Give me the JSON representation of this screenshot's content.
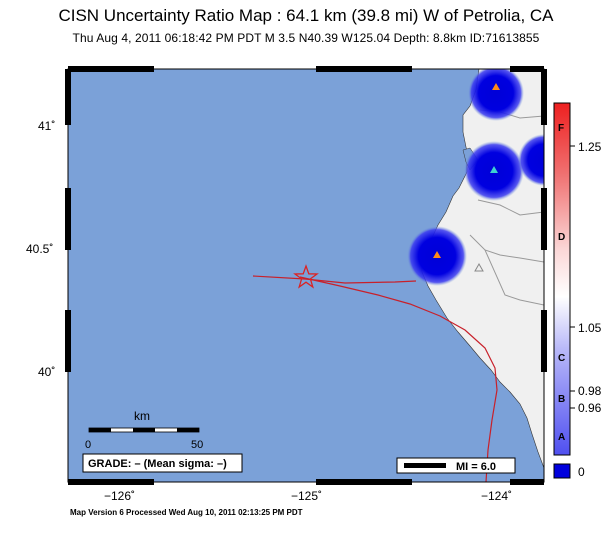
{
  "title": "CISN Uncertainty Ratio Map : 64.1 km (39.8 mi) W of Petrolia, CA",
  "subtitle": "Thu Aug  4, 2011 06:18:42 PM PDT   M 3.5   N40.39 W125.04   Depth: 8.8km   ID:71613855",
  "footer": "Map Version 6 Processed Wed Aug 10, 2011 02:13:25 PM PDT",
  "axes": {
    "lat_labels": [
      "41˚",
      "40.5˚",
      "40˚"
    ],
    "lon_labels": [
      "−126˚",
      "−125˚",
      "−124˚"
    ]
  },
  "scale_bar": {
    "unit": "km",
    "start": "0",
    "end": "50"
  },
  "grade_box": "GRADE: – (Mean sigma: –)",
  "mi_box": "MI = 6.0",
  "colorbar": {
    "letters": [
      "F",
      "D",
      "C",
      "B",
      "A"
    ],
    "values": [
      "1.25",
      "1.05",
      "0.98",
      "0.96",
      "0"
    ],
    "colors": {
      "top": "#ee2020",
      "mid": "#ffffff",
      "bottom": "#5050f0",
      "zero": "#0000dd"
    }
  },
  "colors": {
    "ocean": "#7ba1d8",
    "land": "#f0f0f0",
    "fault": "#c8202a",
    "epicenter": "#dd2222"
  },
  "map_features": {
    "epicenter": "red star at N40.39 W125.04",
    "stations": [
      "orange triangle",
      "cyan triangle",
      "orange triangle",
      "grey open triangle"
    ]
  }
}
